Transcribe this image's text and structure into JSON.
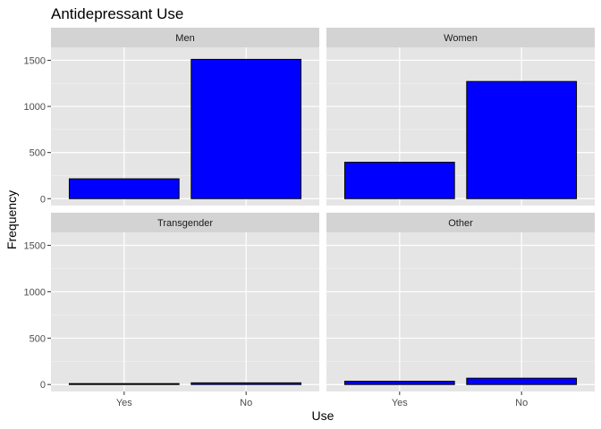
{
  "chart_data": {
    "type": "bar",
    "title": "Antidepressant Use",
    "xlabel": "Use",
    "ylabel": "Frequency",
    "categories": [
      "Yes",
      "No"
    ],
    "ylim": [
      -75,
      1640
    ],
    "y_ticks": [
      0,
      500,
      1000,
      1500
    ],
    "bar_fill": "#0000ff",
    "bar_outline": "#000000",
    "panel_background": "#e5e5e5",
    "strip_background": "#d3d3d3",
    "grid": true,
    "facets": [
      {
        "name": "Men",
        "values": [
          215,
          1510
        ]
      },
      {
        "name": "Women",
        "values": [
          395,
          1270
        ]
      },
      {
        "name": "Transgender",
        "values": [
          10,
          18
        ]
      },
      {
        "name": "Other",
        "values": [
          35,
          68
        ]
      }
    ]
  }
}
